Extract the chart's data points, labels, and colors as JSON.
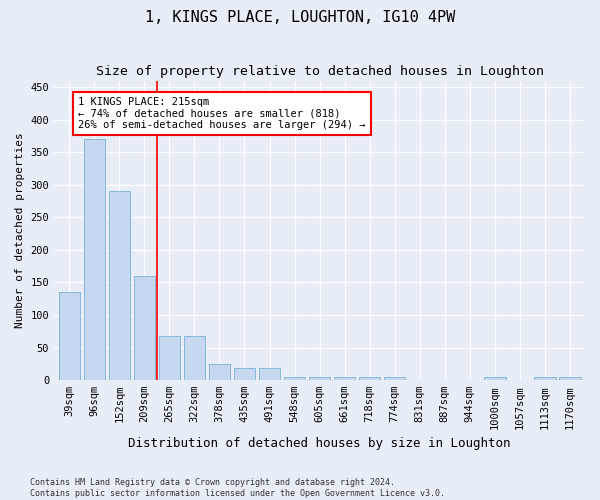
{
  "title": "1, KINGS PLACE, LOUGHTON, IG10 4PW",
  "subtitle": "Size of property relative to detached houses in Loughton",
  "xlabel": "Distribution of detached houses by size in Loughton",
  "ylabel": "Number of detached properties",
  "categories": [
    "39sqm",
    "96sqm",
    "152sqm",
    "209sqm",
    "265sqm",
    "322sqm",
    "378sqm",
    "435sqm",
    "491sqm",
    "548sqm",
    "605sqm",
    "661sqm",
    "718sqm",
    "774sqm",
    "831sqm",
    "887sqm",
    "944sqm",
    "1000sqm",
    "1057sqm",
    "1113sqm",
    "1170sqm"
  ],
  "values": [
    135,
    370,
    290,
    160,
    68,
    68,
    25,
    18,
    18,
    5,
    5,
    5,
    5,
    5,
    0,
    0,
    0,
    5,
    0,
    5,
    5
  ],
  "bar_color": "#c5d8f0",
  "bar_edge_color": "#7aafd4",
  "redline_x": 3.5,
  "annotation_text": "1 KINGS PLACE: 215sqm\n← 74% of detached houses are smaller (818)\n26% of semi-detached houses are larger (294) →",
  "annotation_box_color": "white",
  "annotation_box_edge_color": "red",
  "ylim": [
    0,
    460
  ],
  "yticks": [
    0,
    50,
    100,
    150,
    200,
    250,
    300,
    350,
    400,
    450
  ],
  "title_fontsize": 11,
  "subtitle_fontsize": 9.5,
  "xlabel_fontsize": 9,
  "ylabel_fontsize": 8,
  "tick_fontsize": 7.5,
  "annot_fontsize": 7.5,
  "footer_text": "Contains HM Land Registry data © Crown copyright and database right 2024.\nContains public sector information licensed under the Open Government Licence v3.0.",
  "background_color": "#e8eef8",
  "plot_background_color": "#e8eef8",
  "grid_color": "white"
}
